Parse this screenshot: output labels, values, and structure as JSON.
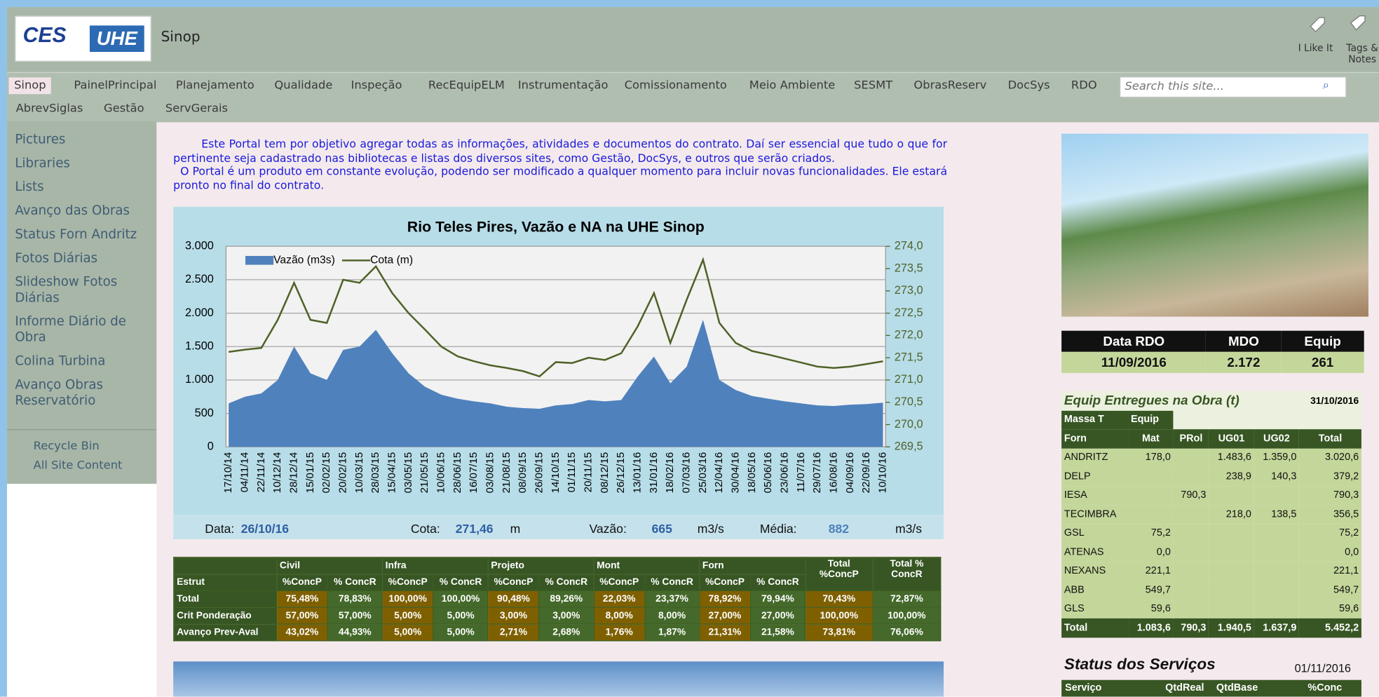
{
  "header": {
    "logo_ces": "CES",
    "logo_uhe": "UHE",
    "site_title": "Sinop",
    "actions": [
      "I Like It",
      "Tags & Notes"
    ]
  },
  "nav": {
    "top": [
      "Sinop",
      "PainelPrincipal",
      "Planejamento",
      "Qualidade",
      "Inspeção",
      "RecEquipELM",
      "Instrumentação",
      "Comissionamento",
      "Meio Ambiente",
      "SESMT",
      "ObrasReserv",
      "DocSys",
      "RDO"
    ],
    "second": [
      "AbrevSiglas",
      "Gestão",
      "ServGerais"
    ],
    "search_placeholder": "Search this site..."
  },
  "sidebar": {
    "links": [
      "Pictures",
      "Libraries",
      "Lists",
      "Avanço das Obras",
      "Status Forn Andritz",
      "Fotos Diárias",
      "Slideshow Fotos Diárias",
      "Informe Diário de Obra",
      "Colina Turbina",
      "Avanço Obras Reservatório"
    ],
    "tools": [
      "Recycle Bin",
      "All Site Content"
    ]
  },
  "intro": [
    "Este Portal tem por objetivo agregar todas as informações, atividades e documentos do contrato. Daí ser essencial que tudo o que for pertinente seja cadastrado nas bibliotecas e listas dos diversos sites, como Gestão, DocSys, e outros que serão criados.",
    "O Portal é um produto em constante evolução, podendo ser modificado a qualquer momento para incluir novas funcionalidades. Ele estará pronto no final do contrato."
  ],
  "chart_data": {
    "type": "area-line",
    "title": "Rio Teles Pires, Vazão e NA na UHE Sinop",
    "legend": "upper left",
    "grid": true,
    "categories": [
      "17/10/14",
      "04/11/14",
      "22/11/14",
      "10/12/14",
      "28/12/14",
      "15/01/15",
      "02/02/15",
      "20/02/15",
      "10/03/15",
      "28/03/15",
      "15/04/15",
      "03/05/15",
      "21/05/15",
      "10/06/15",
      "28/06/15",
      "16/07/15",
      "03/08/15",
      "21/08/15",
      "08/09/15",
      "26/09/15",
      "14/10/15",
      "01/11/15",
      "20/11/15",
      "08/12/15",
      "26/12/15",
      "13/01/16",
      "31/01/16",
      "18/02/16",
      "07/03/16",
      "25/03/16",
      "12/04/16",
      "30/04/16",
      "18/05/16",
      "05/06/16",
      "23/06/16",
      "11/07/16",
      "29/07/16",
      "16/08/16",
      "04/09/16",
      "22/09/16",
      "10/10/16"
    ],
    "series": [
      {
        "name": "Vazão (m3s)",
        "color": "#4f81bd",
        "values": [
          650,
          750,
          800,
          1000,
          1500,
          1100,
          1000,
          1450,
          1500,
          1750,
          1400,
          1100,
          900,
          780,
          720,
          680,
          650,
          600,
          580,
          570,
          620,
          640,
          700,
          680,
          700,
          1050,
          1350,
          950,
          1200,
          1900,
          1000,
          850,
          760,
          720,
          680,
          650,
          620,
          610,
          630,
          640,
          660
        ]
      },
      {
        "name": "Cota (m)",
        "color": "#4f6228",
        "axis": "y2",
        "values": [
          271.63,
          271.68,
          271.72,
          272.35,
          273.18,
          272.35,
          272.28,
          273.25,
          273.18,
          273.55,
          272.95,
          272.5,
          272.13,
          271.75,
          271.53,
          271.42,
          271.33,
          271.27,
          271.2,
          271.08,
          271.4,
          271.38,
          271.5,
          271.45,
          271.6,
          272.2,
          272.95,
          271.83,
          272.8,
          273.7,
          272.28,
          271.83,
          271.65,
          271.57,
          271.48,
          271.39,
          271.3,
          271.27,
          271.3,
          271.36,
          271.42
        ]
      }
    ],
    "ylim": [
      0,
      3000
    ],
    "yticks": [
      0,
      500,
      {
        "value": 1000,
        "label": "1.000"
      },
      {
        "value": 1500,
        "label": "1.500"
      },
      {
        "value": 2000,
        "label": "2.000"
      },
      {
        "value": 2500,
        "label": "2.500"
      },
      {
        "value": 3000,
        "label": "3.000"
      }
    ],
    "y2lim": [
      269.5,
      274
    ],
    "y2ticks": [
      {
        "value": 269.5,
        "label": "269,5"
      },
      {
        "value": 270,
        "label": "270,0"
      },
      {
        "value": 270.5,
        "label": "270,5"
      },
      {
        "value": 271,
        "label": "271,0"
      },
      {
        "value": 271.5,
        "label": "271,5"
      },
      {
        "value": 272,
        "label": "272,0"
      },
      {
        "value": 272.5,
        "label": "272,5"
      },
      {
        "value": 273,
        "label": "273,0"
      },
      {
        "value": 273.5,
        "label": "273,5"
      },
      {
        "value": 274,
        "label": "274,0"
      }
    ]
  },
  "chart_footer": {
    "date_label": "Data:",
    "date": "26/10/16",
    "cota_label": "Cota:",
    "cota": "271,46",
    "cota_unit": "m",
    "vazao_label": "Vazão:",
    "vazao": "665",
    "vazao_unit": "m3/s",
    "media_label": "Média:",
    "media": "882",
    "media_unit": "m3/s"
  },
  "progress_table": {
    "groups": [
      "Civil",
      "Infra",
      "Projeto",
      "Mont",
      "Forn",
      "Total %ConcP",
      "Total % ConcR"
    ],
    "columns": [
      "Estrut",
      "%ConcP",
      "% ConcR",
      "%ConcP",
      "% ConcR",
      "%ConcP",
      "% ConcR",
      "%ConcP",
      "% ConcR",
      "%ConcP",
      "% ConcR"
    ],
    "rows": [
      [
        "Total",
        "75,48%",
        "78,83%",
        "100,00%",
        "100,00%",
        "90,48%",
        "89,26%",
        "22,03%",
        "23,37%",
        "78,92%",
        "79,94%",
        "70,43%",
        "72,87%"
      ],
      [
        "Crit Ponderação",
        "57,00%",
        "57,00%",
        "5,00%",
        "5,00%",
        "3,00%",
        "3,00%",
        "8,00%",
        "8,00%",
        "27,00%",
        "27,00%",
        "100,00%",
        "100,00%"
      ],
      [
        "Avanço Prev-Aval",
        "43,02%",
        "44,93%",
        "5,00%",
        "5,00%",
        "2,71%",
        "2,68%",
        "1,76%",
        "1,87%",
        "21,31%",
        "21,58%",
        "73,81%",
        "76,06%"
      ]
    ]
  },
  "rdo": {
    "headers": [
      "Data RDO",
      "MDO",
      "Equip"
    ],
    "row": [
      "11/09/2016",
      "2.172",
      "261"
    ]
  },
  "equip": {
    "title": "Equip Entregues na Obra (t)",
    "date": "31/10/2016",
    "filters": [
      "Massa T",
      "Equip"
    ],
    "headers": [
      "Forn",
      "Mat",
      "PRol",
      "UG01",
      "UG02",
      "Total"
    ],
    "rows": [
      [
        "ANDRITZ",
        "178,0",
        null,
        "1.483,6",
        "1.359,0",
        "3.020,6"
      ],
      [
        "DELP",
        null,
        null,
        "238,9",
        "140,3",
        "379,2"
      ],
      [
        "IESA",
        null,
        "790,3",
        null,
        null,
        "790,3"
      ],
      [
        "TECIMBRA",
        null,
        null,
        "218,0",
        "138,5",
        "356,5"
      ],
      [
        "GSL",
        "75,2",
        null,
        null,
        null,
        "75,2"
      ],
      [
        "ATENAS",
        "0,0",
        null,
        null,
        null,
        "0,0"
      ],
      [
        "NEXANS",
        "221,1",
        null,
        null,
        null,
        "221,1"
      ],
      [
        "ABB",
        "549,7",
        null,
        null,
        null,
        "549,7"
      ],
      [
        "GLS",
        "59,6",
        null,
        null,
        null,
        "59,6"
      ],
      [
        "Total",
        "1.083,6",
        "790,3",
        "1.940,5",
        "1.637,9",
        "5.452,2"
      ]
    ]
  },
  "status": {
    "title": "Status dos Serviços",
    "date": "01/11/2016",
    "headers": [
      "Serviço",
      "QtdReal",
      "QtdBase",
      "%Conc"
    ]
  }
}
